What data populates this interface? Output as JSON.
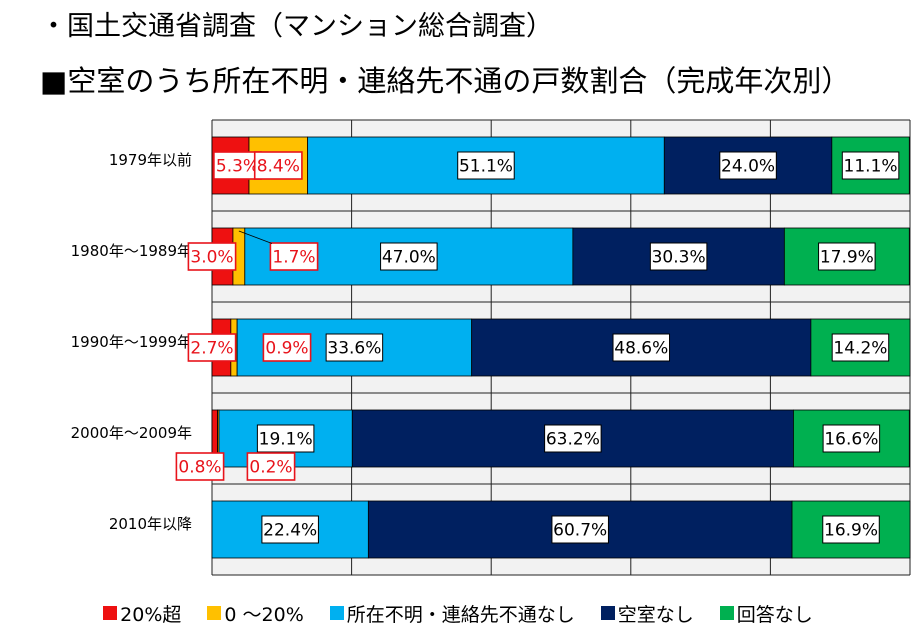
{
  "title_line1": "・国土交通省調査（マンション総合調査）",
  "title_line2": "■空室のうち所在不明・連絡先不通の戸数割合（完成年次別）",
  "chart_data": {
    "type": "bar",
    "orientation": "horizontal",
    "stacked": true,
    "percent_scale": true,
    "xlim": [
      0,
      100
    ],
    "grid": true,
    "categories": [
      "1979年以前",
      "1980年～1989年",
      "1990年～1999年",
      "2000年～2009年",
      "2010年以降"
    ],
    "series": [
      {
        "name": "20%超",
        "color": "#ee1111",
        "values": [
          5.3,
          3.0,
          2.7,
          0.8,
          0.0
        ],
        "labels": [
          "5.3%",
          "3.0%",
          "2.7%",
          "0.8%",
          ""
        ]
      },
      {
        "name": "0 ～20%",
        "color": "#ffc000",
        "values": [
          8.4,
          1.7,
          0.9,
          0.2,
          0.0
        ],
        "labels": [
          "8.4%",
          "1.7%",
          "0.9%",
          "0.2%",
          ""
        ]
      },
      {
        "name": "所在不明・連絡先不通なし",
        "color": "#00b0f0",
        "values": [
          51.1,
          47.0,
          33.6,
          19.1,
          22.4
        ],
        "labels": [
          "51.1%",
          "47.0%",
          "33.6%",
          "19.1%",
          "22.4%"
        ]
      },
      {
        "name": "空室なし",
        "color": "#002060",
        "values": [
          24.0,
          30.3,
          48.6,
          63.2,
          60.7
        ],
        "labels": [
          "24.0%",
          "30.3%",
          "48.6%",
          "63.2%",
          "60.7%"
        ]
      },
      {
        "name": "回答なし",
        "color": "#00b050",
        "values": [
          11.1,
          17.9,
          14.2,
          16.6,
          16.9
        ],
        "labels": [
          "11.1%",
          "17.9%",
          "14.2%",
          "16.6%",
          "16.9%"
        ]
      }
    ],
    "legend_position": "bottom"
  }
}
